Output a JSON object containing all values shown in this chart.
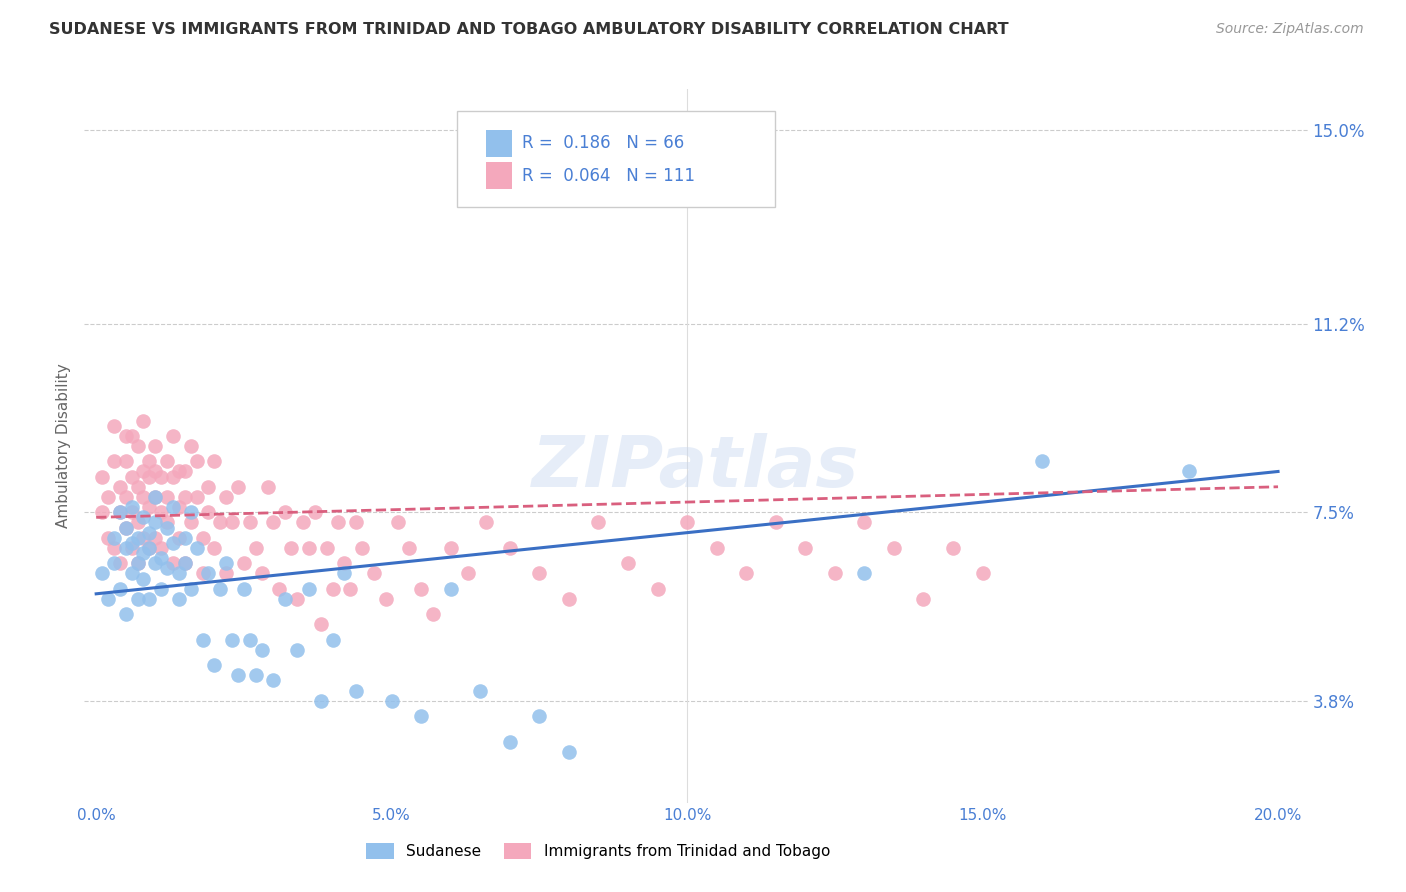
{
  "title": "SUDANESE VS IMMIGRANTS FROM TRINIDAD AND TOBAGO AMBULATORY DISABILITY CORRELATION CHART",
  "source": "Source: ZipAtlas.com",
  "ylabel": "Ambulatory Disability",
  "xlabel_ticks": [
    "0.0%",
    "5.0%",
    "10.0%",
    "15.0%",
    "20.0%"
  ],
  "xlabel_vals": [
    0.0,
    0.05,
    0.1,
    0.15,
    0.2
  ],
  "ylabel_ticks": [
    "3.8%",
    "7.5%",
    "11.2%",
    "15.0%"
  ],
  "ylabel_vals": [
    0.038,
    0.075,
    0.112,
    0.15
  ],
  "xlim": [
    -0.002,
    0.205
  ],
  "ylim": [
    0.018,
    0.158
  ],
  "blue_R": 0.186,
  "blue_N": 66,
  "pink_R": 0.064,
  "pink_N": 111,
  "blue_color": "#92c0ec",
  "pink_color": "#f4a8bc",
  "blue_line_color": "#3a6fc4",
  "pink_line_color": "#d95f7e",
  "legend_label_blue": "Sudanese",
  "legend_label_pink": "Immigrants from Trinidad and Tobago",
  "watermark": "ZIPatlas",
  "title_color": "#333333",
  "axis_label_color": "#4a7fd4",
  "blue_scatter_x": [
    0.001,
    0.002,
    0.003,
    0.003,
    0.004,
    0.004,
    0.005,
    0.005,
    0.005,
    0.006,
    0.006,
    0.006,
    0.007,
    0.007,
    0.007,
    0.008,
    0.008,
    0.008,
    0.009,
    0.009,
    0.009,
    0.01,
    0.01,
    0.01,
    0.011,
    0.011,
    0.012,
    0.012,
    0.013,
    0.013,
    0.014,
    0.014,
    0.015,
    0.015,
    0.016,
    0.016,
    0.017,
    0.018,
    0.019,
    0.02,
    0.021,
    0.022,
    0.023,
    0.024,
    0.025,
    0.026,
    0.027,
    0.028,
    0.03,
    0.032,
    0.034,
    0.036,
    0.038,
    0.04,
    0.042,
    0.044,
    0.05,
    0.055,
    0.06,
    0.065,
    0.07,
    0.075,
    0.08,
    0.13,
    0.16,
    0.185
  ],
  "blue_scatter_y": [
    0.063,
    0.058,
    0.07,
    0.065,
    0.06,
    0.075,
    0.068,
    0.072,
    0.055,
    0.063,
    0.069,
    0.076,
    0.065,
    0.07,
    0.058,
    0.074,
    0.067,
    0.062,
    0.071,
    0.068,
    0.058,
    0.065,
    0.073,
    0.078,
    0.066,
    0.06,
    0.072,
    0.064,
    0.069,
    0.076,
    0.063,
    0.058,
    0.07,
    0.065,
    0.06,
    0.075,
    0.068,
    0.05,
    0.063,
    0.045,
    0.06,
    0.065,
    0.05,
    0.043,
    0.06,
    0.05,
    0.043,
    0.048,
    0.042,
    0.058,
    0.048,
    0.06,
    0.038,
    0.05,
    0.063,
    0.04,
    0.038,
    0.035,
    0.06,
    0.04,
    0.03,
    0.035,
    0.028,
    0.063,
    0.085,
    0.083
  ],
  "pink_scatter_x": [
    0.001,
    0.001,
    0.002,
    0.002,
    0.003,
    0.003,
    0.003,
    0.004,
    0.004,
    0.004,
    0.005,
    0.005,
    0.005,
    0.005,
    0.006,
    0.006,
    0.006,
    0.006,
    0.007,
    0.007,
    0.007,
    0.007,
    0.008,
    0.008,
    0.008,
    0.008,
    0.009,
    0.009,
    0.009,
    0.009,
    0.01,
    0.01,
    0.01,
    0.01,
    0.011,
    0.011,
    0.011,
    0.012,
    0.012,
    0.012,
    0.013,
    0.013,
    0.013,
    0.014,
    0.014,
    0.014,
    0.015,
    0.015,
    0.015,
    0.016,
    0.016,
    0.017,
    0.017,
    0.018,
    0.018,
    0.019,
    0.019,
    0.02,
    0.02,
    0.021,
    0.022,
    0.022,
    0.023,
    0.024,
    0.025,
    0.026,
    0.027,
    0.028,
    0.029,
    0.03,
    0.031,
    0.032,
    0.033,
    0.034,
    0.035,
    0.036,
    0.037,
    0.038,
    0.039,
    0.04,
    0.041,
    0.042,
    0.043,
    0.044,
    0.045,
    0.047,
    0.049,
    0.051,
    0.053,
    0.055,
    0.057,
    0.06,
    0.063,
    0.066,
    0.07,
    0.075,
    0.08,
    0.085,
    0.09,
    0.095,
    0.1,
    0.105,
    0.11,
    0.115,
    0.12,
    0.125,
    0.13,
    0.135,
    0.14,
    0.145,
    0.15
  ],
  "pink_scatter_y": [
    0.075,
    0.082,
    0.07,
    0.078,
    0.085,
    0.068,
    0.092,
    0.075,
    0.08,
    0.065,
    0.078,
    0.085,
    0.072,
    0.09,
    0.068,
    0.082,
    0.075,
    0.09,
    0.065,
    0.08,
    0.073,
    0.088,
    0.078,
    0.083,
    0.07,
    0.093,
    0.076,
    0.082,
    0.068,
    0.085,
    0.078,
    0.083,
    0.07,
    0.088,
    0.075,
    0.082,
    0.068,
    0.085,
    0.073,
    0.078,
    0.065,
    0.082,
    0.09,
    0.076,
    0.083,
    0.07,
    0.078,
    0.083,
    0.065,
    0.088,
    0.073,
    0.078,
    0.085,
    0.07,
    0.063,
    0.08,
    0.075,
    0.068,
    0.085,
    0.073,
    0.078,
    0.063,
    0.073,
    0.08,
    0.065,
    0.073,
    0.068,
    0.063,
    0.08,
    0.073,
    0.06,
    0.075,
    0.068,
    0.058,
    0.073,
    0.068,
    0.075,
    0.053,
    0.068,
    0.06,
    0.073,
    0.065,
    0.06,
    0.073,
    0.068,
    0.063,
    0.058,
    0.073,
    0.068,
    0.06,
    0.055,
    0.068,
    0.063,
    0.073,
    0.068,
    0.063,
    0.058,
    0.073,
    0.065,
    0.06,
    0.073,
    0.068,
    0.063,
    0.073,
    0.068,
    0.063,
    0.073,
    0.068,
    0.058,
    0.068,
    0.063
  ],
  "blue_line_x": [
    0.0,
    0.2
  ],
  "blue_line_y": [
    0.059,
    0.083
  ],
  "pink_line_x": [
    0.0,
    0.2
  ],
  "pink_line_y": [
    0.074,
    0.08
  ]
}
